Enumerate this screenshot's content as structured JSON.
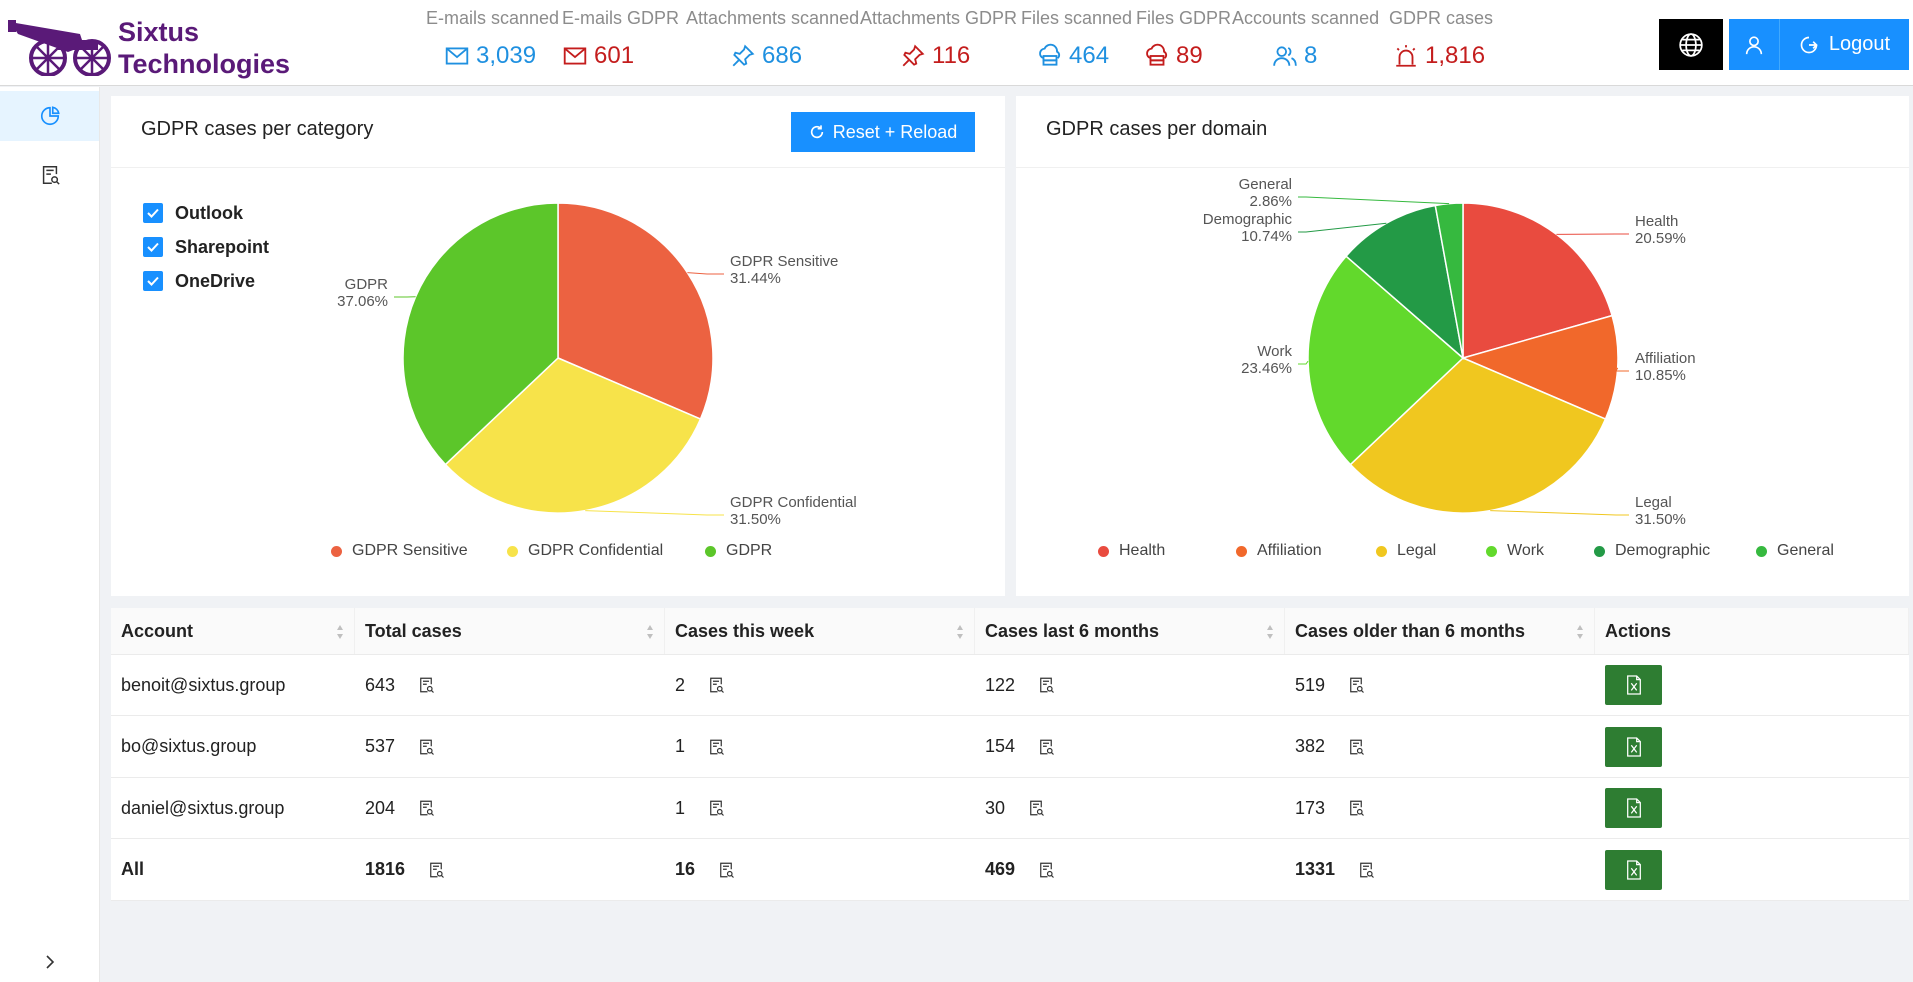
{
  "brand": {
    "line1": "Sixtus",
    "line2": "Technologies"
  },
  "stats": [
    {
      "label": "E-mails scanned",
      "value": "3,039",
      "icon": "mail-icon",
      "tone": "blue"
    },
    {
      "label": "E-mails GDPR",
      "value": "601",
      "icon": "mail-icon",
      "tone": "red"
    },
    {
      "label": "Attachments scanned",
      "value": "686",
      "icon": "pin-icon",
      "tone": "blue"
    },
    {
      "label": "Attachments GDPR",
      "value": "116",
      "icon": "pin-icon",
      "tone": "red"
    },
    {
      "label": "Files scanned",
      "value": "464",
      "icon": "cloud-server-icon",
      "tone": "blue"
    },
    {
      "label": "Files GDPR",
      "value": "89",
      "icon": "cloud-server-icon",
      "tone": "red"
    },
    {
      "label": "Accounts scanned",
      "value": "8",
      "icon": "users-icon",
      "tone": "blue"
    },
    {
      "label": "GDPR cases",
      "value": "1,816",
      "icon": "alarm-icon",
      "tone": "red"
    }
  ],
  "header": {
    "logout_label": "Logout"
  },
  "category_card": {
    "title": "GDPR cases per category",
    "reset_label": "Reset + Reload",
    "filters": [
      "Outlook",
      "Sharepoint",
      "OneDrive"
    ]
  },
  "domain_card": {
    "title": "GDPR cases per domain"
  },
  "chart_data": [
    {
      "type": "pie",
      "title": "GDPR cases per category",
      "categories": [
        "GDPR Sensitive",
        "GDPR Confidential",
        "GDPR"
      ],
      "values": [
        31.44,
        31.5,
        37.06
      ],
      "labels": [
        "31.44%",
        "31.50%",
        "37.06%"
      ],
      "colors": [
        "#ec6241",
        "#f7e34a",
        "#5cc62a"
      ],
      "legend": "bottom"
    },
    {
      "type": "pie",
      "title": "GDPR cases per domain",
      "categories": [
        "Health",
        "Affiliation",
        "Legal",
        "Work",
        "Demographic",
        "General"
      ],
      "values": [
        20.59,
        10.85,
        31.5,
        23.46,
        10.74,
        2.86
      ],
      "labels": [
        "20.59%",
        "10.85%",
        "31.50%",
        "23.46%",
        "10.74%",
        "2.86%"
      ],
      "colors": [
        "#e94b3f",
        "#f1682b",
        "#f0c71f",
        "#62d92c",
        "#239a46",
        "#36b93f"
      ],
      "legend": "bottom"
    }
  ],
  "table": {
    "columns": [
      "Account",
      "Total cases",
      "Cases this week",
      "Cases last 6 months",
      "Cases older than 6 months",
      "Actions"
    ],
    "rows": [
      {
        "account": "benoit@sixtus.group",
        "total": "643",
        "week": "2",
        "six": "122",
        "older": "519"
      },
      {
        "account": "bo@sixtus.group",
        "total": "537",
        "week": "1",
        "six": "154",
        "older": "382"
      },
      {
        "account": "daniel@sixtus.group",
        "total": "204",
        "week": "1",
        "six": "30",
        "older": "173"
      }
    ],
    "total_row": {
      "account": "All",
      "total": "1816",
      "week": "16",
      "six": "469",
      "older": "1331"
    }
  }
}
